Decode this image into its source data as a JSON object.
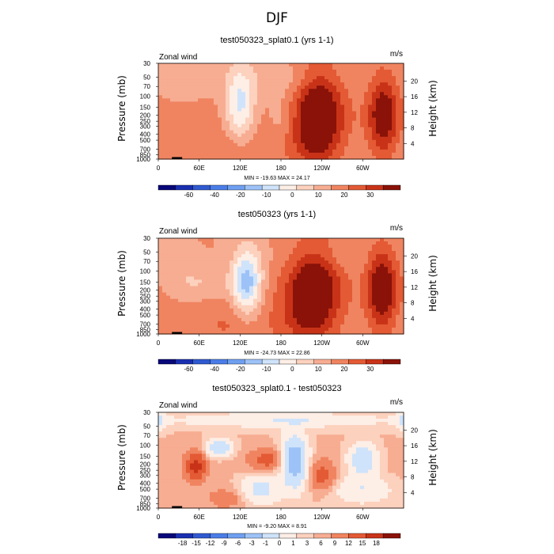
{
  "figure": {
    "title": "DJF"
  },
  "colors": {
    "abs_palette": [
      "#08087a",
      "#1a2fb0",
      "#2f5ad0",
      "#4a7de8",
      "#6f9ff0",
      "#9dc2f7",
      "#cfe3fb",
      "#fdeee6",
      "#fcd1bd",
      "#f7ad92",
      "#f08460",
      "#e35a34",
      "#c83318",
      "#8a1208"
    ],
    "diff_palette": [
      "#08087a",
      "#1a2fb0",
      "#2f5ad0",
      "#4a7de8",
      "#6f9ff0",
      "#9dc2f7",
      "#cfe3fb",
      "#fdeee6",
      "#fcd1bd",
      "#f7ad92",
      "#f08460",
      "#e35a34",
      "#c83318",
      "#8a1208"
    ]
  },
  "chart_data": [
    {
      "type": "contour",
      "title": "test050323_splat0.1 (yrs 1-1)",
      "left_label": "Zonal wind",
      "right_label": "m/s",
      "ylabel": "Pressure (mb)",
      "ylabel_right": "Height (km)",
      "xticks": [
        {
          "lon": 0,
          "label": "0"
        },
        {
          "lon": 60,
          "label": "60E"
        },
        {
          "lon": 120,
          "label": "120E"
        },
        {
          "lon": 180,
          "label": "180"
        },
        {
          "lon": 240,
          "label": "120W"
        },
        {
          "lon": 300,
          "label": "60W"
        }
      ],
      "xlim": [
        0,
        360
      ],
      "yticks": [
        {
          "p": 30,
          "label": "30"
        },
        {
          "p": 50,
          "label": "50"
        },
        {
          "p": 70,
          "label": "70"
        },
        {
          "p": 100,
          "label": "100"
        },
        {
          "p": 150,
          "label": "150"
        },
        {
          "p": 200,
          "label": "200"
        },
        {
          "p": 250,
          "label": "250"
        },
        {
          "p": 300,
          "label": "300"
        },
        {
          "p": 400,
          "label": "400"
        },
        {
          "p": 500,
          "label": "500"
        },
        {
          "p": 700,
          "label": "700"
        },
        {
          "p": 850,
          "label": "850"
        },
        {
          "p": 1000,
          "label": "1000"
        }
      ],
      "ylim": [
        1000,
        30
      ],
      "height_ticks": [
        {
          "km": 4,
          "label": "4"
        },
        {
          "km": 8,
          "label": "8"
        },
        {
          "km": 12,
          "label": "12"
        },
        {
          "km": 16,
          "label": "16"
        },
        {
          "km": 20,
          "label": "20"
        }
      ],
      "stats": "MIN = -19.63   MAX =  24.17",
      "levels": [
        -70,
        -60,
        -50,
        -40,
        -30,
        -20,
        -15,
        -10,
        -5,
        0,
        5,
        10,
        15,
        20,
        25,
        30,
        40
      ],
      "colorbar_labels": [
        "-60",
        "-40",
        "-20",
        "-10",
        "0",
        "10",
        "20",
        "30"
      ],
      "palette": "abs",
      "background": 2,
      "features": [
        {
          "lon": 120,
          "p": 140,
          "amp": -18,
          "slon": 22,
          "sz": 1.4
        },
        {
          "lon": 235,
          "p": 200,
          "amp": 24,
          "slon": 35,
          "sz": 1.7
        },
        {
          "lon": 330,
          "p": 200,
          "amp": 19,
          "slon": 22,
          "sz": 1.5
        },
        {
          "lon": 195,
          "p": 650,
          "amp": 4,
          "slon": 60,
          "sz": 0.9
        },
        {
          "lon": 110,
          "p": 700,
          "amp": 5,
          "slon": 35,
          "sz": 0.8
        },
        {
          "lon": 190,
          "p": 55,
          "amp": -4,
          "slon": 60,
          "sz": 0.6
        },
        {
          "lon": 40,
          "p": 80,
          "amp": -3,
          "slon": 40,
          "sz": 0.5
        },
        {
          "lon": 180,
          "p": 220,
          "amp": -5,
          "slon": 20,
          "sz": 0.9
        }
      ]
    },
    {
      "type": "contour",
      "title": "test050323 (yrs 1-1)",
      "left_label": "Zonal wind",
      "right_label": "m/s",
      "ylabel": "Pressure (mb)",
      "ylabel_right": "Height (km)",
      "xticks": [
        {
          "lon": 0,
          "label": "0"
        },
        {
          "lon": 60,
          "label": "60E"
        },
        {
          "lon": 120,
          "label": "120E"
        },
        {
          "lon": 180,
          "label": "180"
        },
        {
          "lon": 240,
          "label": "120W"
        },
        {
          "lon": 300,
          "label": "60W"
        }
      ],
      "xlim": [
        0,
        360
      ],
      "yticks": [
        {
          "p": 30,
          "label": "30"
        },
        {
          "p": 50,
          "label": "50"
        },
        {
          "p": 70,
          "label": "70"
        },
        {
          "p": 100,
          "label": "100"
        },
        {
          "p": 150,
          "label": "150"
        },
        {
          "p": 200,
          "label": "200"
        },
        {
          "p": 250,
          "label": "250"
        },
        {
          "p": 300,
          "label": "300"
        },
        {
          "p": 400,
          "label": "400"
        },
        {
          "p": 500,
          "label": "500"
        },
        {
          "p": 700,
          "label": "700"
        },
        {
          "p": 850,
          "label": "850"
        },
        {
          "p": 1000,
          "label": "1000"
        }
      ],
      "ylim": [
        1000,
        30
      ],
      "height_ticks": [
        {
          "km": 4,
          "label": "4"
        },
        {
          "km": 8,
          "label": "8"
        },
        {
          "km": 12,
          "label": "12"
        },
        {
          "km": 16,
          "label": "16"
        },
        {
          "km": 20,
          "label": "20"
        }
      ],
      "stats": "MIN = -24.73   MAX =  22.86",
      "levels": [
        -70,
        -60,
        -50,
        -40,
        -30,
        -20,
        -15,
        -10,
        -5,
        0,
        5,
        10,
        15,
        20,
        25,
        30,
        40
      ],
      "colorbar_labels": [
        "-60",
        "-40",
        "-20",
        "-10",
        "0",
        "10",
        "20",
        "30"
      ],
      "palette": "abs",
      "background": 2,
      "features": [
        {
          "lon": 130,
          "p": 150,
          "amp": -24,
          "slon": 22,
          "sz": 1.2
        },
        {
          "lon": 228,
          "p": 200,
          "amp": 23,
          "slon": 38,
          "sz": 1.7
        },
        {
          "lon": 328,
          "p": 190,
          "amp": 21,
          "slon": 22,
          "sz": 1.5
        },
        {
          "lon": 190,
          "p": 650,
          "amp": 5,
          "slon": 60,
          "sz": 0.9
        },
        {
          "lon": 100,
          "p": 720,
          "amp": 5,
          "slon": 40,
          "sz": 0.8
        },
        {
          "lon": 70,
          "p": 160,
          "amp": -6,
          "slon": 40,
          "sz": 0.6
        },
        {
          "lon": 30,
          "p": 130,
          "amp": -4,
          "slon": 30,
          "sz": 0.7
        },
        {
          "lon": 240,
          "p": 60,
          "amp": -3,
          "slon": 50,
          "sz": 0.5
        }
      ]
    },
    {
      "type": "contour",
      "title": "test050323_splat0.1 - test050323",
      "left_label": "Zonal wind",
      "right_label": "m/s",
      "ylabel": "Pressure (mb)",
      "ylabel_right": "Height (km)",
      "xticks": [
        {
          "lon": 0,
          "label": "0"
        },
        {
          "lon": 60,
          "label": "60E"
        },
        {
          "lon": 120,
          "label": "120E"
        },
        {
          "lon": 180,
          "label": "180"
        },
        {
          "lon": 240,
          "label": "120W"
        },
        {
          "lon": 300,
          "label": "60W"
        }
      ],
      "xlim": [
        0,
        360
      ],
      "yticks": [
        {
          "p": 30,
          "label": "30"
        },
        {
          "p": 50,
          "label": "50"
        },
        {
          "p": 70,
          "label": "70"
        },
        {
          "p": 100,
          "label": "100"
        },
        {
          "p": 150,
          "label": "150"
        },
        {
          "p": 200,
          "label": "200"
        },
        {
          "p": 250,
          "label": "250"
        },
        {
          "p": 300,
          "label": "300"
        },
        {
          "p": 400,
          "label": "400"
        },
        {
          "p": 500,
          "label": "500"
        },
        {
          "p": 700,
          "label": "700"
        },
        {
          "p": 850,
          "label": "850"
        },
        {
          "p": 1000,
          "label": "1000"
        }
      ],
      "ylim": [
        1000,
        30
      ],
      "height_ticks": [
        {
          "km": 4,
          "label": "4"
        },
        {
          "km": 8,
          "label": "8"
        },
        {
          "km": 12,
          "label": "12"
        },
        {
          "km": 16,
          "label": "16"
        },
        {
          "km": 20,
          "label": "20"
        }
      ],
      "stats": "MIN =  -9.20   MAX =   8.91",
      "levels": [
        -21,
        -18,
        -15,
        -12,
        -9,
        -6,
        -3,
        -1,
        0,
        1,
        3,
        6,
        9,
        12,
        15,
        18
      ],
      "colorbar_labels": [
        "-18",
        "-15",
        "-12",
        "-9",
        "-6",
        "-3",
        "-1",
        "0",
        "1",
        "3",
        "6",
        "9",
        "12",
        "15",
        "18"
      ],
      "palette": "diff",
      "background": 0.3,
      "features": [
        {
          "lon": -10,
          "p": 40,
          "amp": -6,
          "slon": 18,
          "sz": 0.35
        },
        {
          "lon": 370,
          "p": 40,
          "amp": -6,
          "slon": 18,
          "sz": 0.35
        },
        {
          "lon": 180,
          "p": 40,
          "amp": -3,
          "slon": 150,
          "sz": 0.25
        },
        {
          "lon": 55,
          "p": 220,
          "amp": 7,
          "slon": 14,
          "sz": 0.5
        },
        {
          "lon": 160,
          "p": 170,
          "amp": 4,
          "slon": 25,
          "sz": 0.35
        },
        {
          "lon": 90,
          "p": 110,
          "amp": -6,
          "slon": 18,
          "sz": 0.3
        },
        {
          "lon": 200,
          "p": 180,
          "amp": -9,
          "slon": 18,
          "sz": 0.9
        },
        {
          "lon": 300,
          "p": 170,
          "amp": -6,
          "slon": 20,
          "sz": 0.55
        },
        {
          "lon": 240,
          "p": 300,
          "amp": 4,
          "slon": 18,
          "sz": 0.5
        },
        {
          "lon": 150,
          "p": 500,
          "amp": -4,
          "slon": 30,
          "sz": 0.5
        },
        {
          "lon": 300,
          "p": 500,
          "amp": -3,
          "slon": 40,
          "sz": 0.5
        },
        {
          "lon": 100,
          "p": 700,
          "amp": 2,
          "slon": 30,
          "sz": 0.4
        }
      ]
    }
  ]
}
